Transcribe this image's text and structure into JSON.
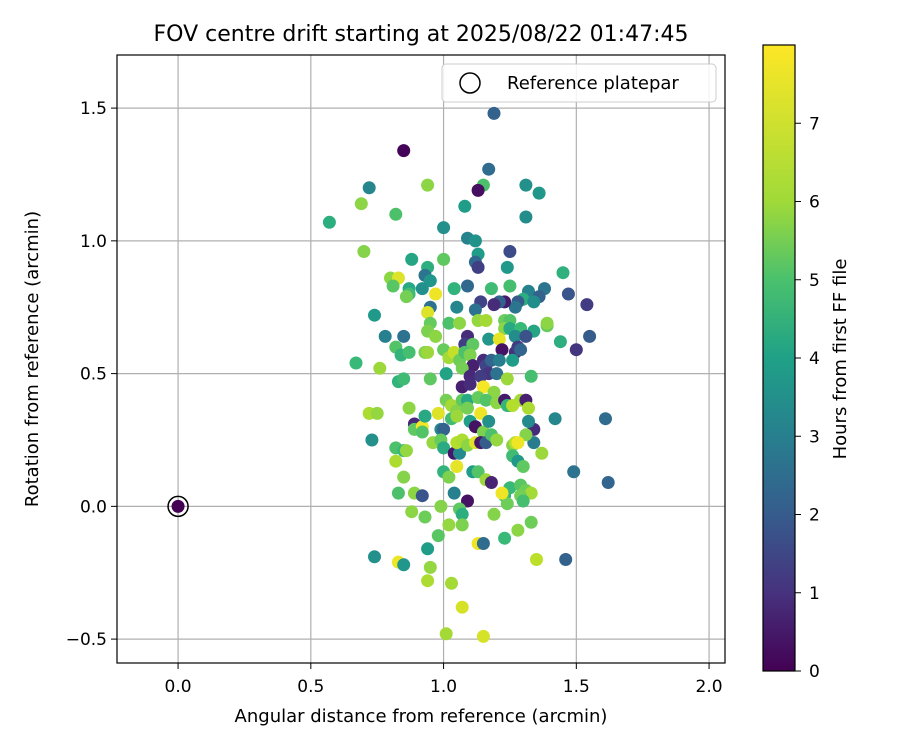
{
  "chart_data": {
    "type": "scatter",
    "title": "FOV centre drift starting at 2025/08/22 01:47:45",
    "xlabel": "Angular distance from reference (arcmin)",
    "ylabel": "Rotation from reference (arcmin)",
    "xlim": [
      -0.23,
      2.06
    ],
    "ylim": [
      -0.59,
      1.7
    ],
    "xticks": [
      0.0,
      0.5,
      1.0,
      1.5,
      2.0
    ],
    "xtick_labels": [
      "0.0",
      "0.5",
      "1.0",
      "1.5",
      "2.0"
    ],
    "yticks": [
      -0.5,
      0.0,
      0.5,
      1.0,
      1.5
    ],
    "ytick_labels": [
      "−0.5",
      "0.0",
      "0.5",
      "1.0",
      "1.5"
    ],
    "grid": true,
    "legend": {
      "position": "top-right",
      "entries": [
        "Reference platepar"
      ]
    },
    "reference_point": {
      "x": 0.0,
      "y": 0.0,
      "c": 0
    },
    "colorbar": {
      "label": "Hours from first FF file",
      "colormap": "viridis",
      "range": [
        0,
        8
      ],
      "ticks": [
        0,
        1,
        2,
        3,
        4,
        5,
        6,
        7
      ],
      "tick_labels": [
        "0",
        "1",
        "2",
        "3",
        "4",
        "5",
        "6",
        "7"
      ]
    },
    "series": [
      {
        "points": [
          [
            0.85,
            1.34,
            0.1
          ],
          [
            1.19,
            1.48,
            2.5
          ],
          [
            1.17,
            1.27,
            2.8
          ],
          [
            1.15,
            1.21,
            5.7
          ],
          [
            1.13,
            1.19,
            0.3
          ],
          [
            1.31,
            1.21,
            4.0
          ],
          [
            1.36,
            1.18,
            4.2
          ],
          [
            0.94,
            1.21,
            6.6
          ],
          [
            0.72,
            1.2,
            3.7
          ],
          [
            0.57,
            1.07,
            5.0
          ],
          [
            0.69,
            1.14,
            6.6
          ],
          [
            0.82,
            1.1,
            5.7
          ],
          [
            1.08,
            1.13,
            4.4
          ],
          [
            1.31,
            1.09,
            3.9
          ],
          [
            1.0,
            1.05,
            4.0
          ],
          [
            1.09,
            1.01,
            3.6
          ],
          [
            1.12,
            1.0,
            4.1
          ],
          [
            0.7,
            0.96,
            6.5
          ],
          [
            1.25,
            0.96,
            1.8
          ],
          [
            1.13,
            0.95,
            4.4
          ],
          [
            1.12,
            0.92,
            2.7
          ],
          [
            1.13,
            0.9,
            1.5
          ],
          [
            0.88,
            0.93,
            4.7
          ],
          [
            0.94,
            0.9,
            5.0
          ],
          [
            1.0,
            0.93,
            6.0
          ],
          [
            1.24,
            0.9,
            4.3
          ],
          [
            1.45,
            0.88,
            5.1
          ],
          [
            0.93,
            0.87,
            3.1
          ],
          [
            0.95,
            0.85,
            4.2
          ],
          [
            0.8,
            0.86,
            6.6
          ],
          [
            0.83,
            0.86,
            7.6
          ],
          [
            0.81,
            0.83,
            5.9
          ],
          [
            0.87,
            0.82,
            4.8
          ],
          [
            0.87,
            0.8,
            5.5
          ],
          [
            0.92,
            0.82,
            4.0
          ],
          [
            0.97,
            0.8,
            7.8
          ],
          [
            1.04,
            0.82,
            5.2
          ],
          [
            1.09,
            0.83,
            2.7
          ],
          [
            1.18,
            0.82,
            5.5
          ],
          [
            1.25,
            0.83,
            5.6
          ],
          [
            1.32,
            0.81,
            3.6
          ],
          [
            1.38,
            0.82,
            3.1
          ],
          [
            1.36,
            0.79,
            2.5
          ],
          [
            1.3,
            0.78,
            5.0
          ],
          [
            1.34,
            0.77,
            3.9
          ],
          [
            1.28,
            0.77,
            2.3
          ],
          [
            1.27,
            0.75,
            3.1
          ],
          [
            1.23,
            0.77,
            0.6
          ],
          [
            1.21,
            0.77,
            2.5
          ],
          [
            1.14,
            0.77,
            1.6
          ],
          [
            1.19,
            0.76,
            1.0
          ],
          [
            1.12,
            0.74,
            3.0
          ],
          [
            1.05,
            0.75,
            3.7
          ],
          [
            0.95,
            0.75,
            3.0
          ],
          [
            0.86,
            0.79,
            6.3
          ],
          [
            1.47,
            0.8,
            2.1
          ],
          [
            1.54,
            0.76,
            1.4
          ],
          [
            0.94,
            0.73,
            7.6
          ],
          [
            0.74,
            0.72,
            4.3
          ],
          [
            0.95,
            0.69,
            6.1
          ],
          [
            1.02,
            0.69,
            5.7
          ],
          [
            1.06,
            0.69,
            6.6
          ],
          [
            1.13,
            0.7,
            6.7
          ],
          [
            1.16,
            0.7,
            6.9
          ],
          [
            1.23,
            0.7,
            6.2
          ],
          [
            1.25,
            0.7,
            5.8
          ],
          [
            1.23,
            0.67,
            6.6
          ],
          [
            1.25,
            0.67,
            4.8
          ],
          [
            1.29,
            0.67,
            5.4
          ],
          [
            1.34,
            0.66,
            4.7
          ],
          [
            1.39,
            0.68,
            6.1
          ],
          [
            1.39,
            0.69,
            6.6
          ],
          [
            1.44,
            0.62,
            5.0
          ],
          [
            1.5,
            0.59,
            1.2
          ],
          [
            1.55,
            0.64,
            2.3
          ],
          [
            0.78,
            0.64,
            3.5
          ],
          [
            0.85,
            0.64,
            3.0
          ],
          [
            0.94,
            0.66,
            6.4
          ],
          [
            0.97,
            0.64,
            6.6
          ],
          [
            1.09,
            0.64,
            1.0
          ],
          [
            1.08,
            0.61,
            1.5
          ],
          [
            1.11,
            0.61,
            6.0
          ],
          [
            1.17,
            0.63,
            4.2
          ],
          [
            1.21,
            0.63,
            7.7
          ],
          [
            1.27,
            0.64,
            3.9
          ],
          [
            1.31,
            0.64,
            2.0
          ],
          [
            1.22,
            0.59,
            0.4
          ],
          [
            1.27,
            0.58,
            1.1
          ],
          [
            1.28,
            0.6,
            1.4
          ],
          [
            1.29,
            0.59,
            2.6
          ],
          [
            0.82,
            0.6,
            5.8
          ],
          [
            0.93,
            0.58,
            6.4
          ],
          [
            0.94,
            0.58,
            6.8
          ],
          [
            1.0,
            0.59,
            6.1
          ],
          [
            1.02,
            0.56,
            6.9
          ],
          [
            1.04,
            0.58,
            7.3
          ],
          [
            1.06,
            0.55,
            6.2
          ],
          [
            1.08,
            0.58,
            5.7
          ],
          [
            1.1,
            0.57,
            6.4
          ],
          [
            1.11,
            0.53,
            0.7
          ],
          [
            1.15,
            0.55,
            1.0
          ],
          [
            1.16,
            0.53,
            1.6
          ],
          [
            1.17,
            0.5,
            1.2
          ],
          [
            1.18,
            0.55,
            2.6
          ],
          [
            1.21,
            0.55,
            3.4
          ],
          [
            1.26,
            0.55,
            4.4
          ],
          [
            0.67,
            0.54,
            5.4
          ],
          [
            0.76,
            0.52,
            6.8
          ],
          [
            0.84,
            0.57,
            5.2
          ],
          [
            0.87,
            0.58,
            5.6
          ],
          [
            1.01,
            0.5,
            4.6
          ],
          [
            1.07,
            0.52,
            6.3
          ],
          [
            1.1,
            0.49,
            0.9
          ],
          [
            1.14,
            0.49,
            1.4
          ],
          [
            1.2,
            0.5,
            3.0
          ],
          [
            1.24,
            0.48,
            6.8
          ],
          [
            1.33,
            0.49,
            5.6
          ],
          [
            0.83,
            0.47,
            5.2
          ],
          [
            0.85,
            0.48,
            5.5
          ],
          [
            0.95,
            0.48,
            6.0
          ],
          [
            1.07,
            0.45,
            0.7
          ],
          [
            1.1,
            0.46,
            1.0
          ],
          [
            1.15,
            0.45,
            7.9
          ],
          [
            1.19,
            0.43,
            6.6
          ],
          [
            1.25,
            0.38,
            4.8
          ],
          [
            1.29,
            0.4,
            6.9
          ],
          [
            1.31,
            0.4,
            0.7
          ],
          [
            1.32,
            0.37,
            7.0
          ],
          [
            1.01,
            0.4,
            6.3
          ],
          [
            1.03,
            0.38,
            6.9
          ],
          [
            1.05,
            0.36,
            6.5
          ],
          [
            1.07,
            0.4,
            6.0
          ],
          [
            1.09,
            0.4,
            4.8
          ],
          [
            1.13,
            0.41,
            6.1
          ],
          [
            1.16,
            0.4,
            5.8
          ],
          [
            1.2,
            0.39,
            6.6
          ],
          [
            1.23,
            0.4,
            0.6
          ],
          [
            1.24,
            0.38,
            5.3
          ],
          [
            1.26,
            0.38,
            7.1
          ],
          [
            1.34,
            0.29,
            1.0
          ],
          [
            1.34,
            0.24,
            3.3
          ],
          [
            1.32,
            0.32,
            3.8
          ],
          [
            1.31,
            0.27,
            6.5
          ],
          [
            1.42,
            0.33,
            3.7
          ],
          [
            0.72,
            0.35,
            7.0
          ],
          [
            0.75,
            0.35,
            6.7
          ],
          [
            0.87,
            0.37,
            6.6
          ],
          [
            0.89,
            0.31,
            0.9
          ],
          [
            0.89,
            0.29,
            6.0
          ],
          [
            0.92,
            0.3,
            7.9
          ],
          [
            0.93,
            0.34,
            4.8
          ],
          [
            0.98,
            0.35,
            7.6
          ],
          [
            0.99,
            0.29,
            3.8
          ],
          [
            1.0,
            0.29,
            2.5
          ],
          [
            1.03,
            0.33,
            5.5
          ],
          [
            1.05,
            0.34,
            6.8
          ],
          [
            1.09,
            0.37,
            6.3
          ],
          [
            1.1,
            0.32,
            4.5
          ],
          [
            1.12,
            0.3,
            0.4
          ],
          [
            1.14,
            0.35,
            7.8
          ],
          [
            1.15,
            0.28,
            6.4
          ],
          [
            1.17,
            0.32,
            4.0
          ],
          [
            1.61,
            0.33,
            2.8
          ],
          [
            0.73,
            0.25,
            4.0
          ],
          [
            0.82,
            0.22,
            5.7
          ],
          [
            0.85,
            0.21,
            5.4
          ],
          [
            0.86,
            0.21,
            6.7
          ],
          [
            0.92,
            0.28,
            5.8
          ],
          [
            0.96,
            0.24,
            6.7
          ],
          [
            0.99,
            0.25,
            6.1
          ],
          [
            1.0,
            0.22,
            4.9
          ],
          [
            1.04,
            0.2,
            0.5
          ],
          [
            1.06,
            0.2,
            3.8
          ],
          [
            1.05,
            0.24,
            7.1
          ],
          [
            1.07,
            0.25,
            7.0
          ],
          [
            1.09,
            0.23,
            6.6
          ],
          [
            1.12,
            0.24,
            7.6
          ],
          [
            1.14,
            0.24,
            0.5
          ],
          [
            1.16,
            0.24,
            2.3
          ],
          [
            1.18,
            0.27,
            5.7
          ],
          [
            1.2,
            0.25,
            6.7
          ],
          [
            1.26,
            0.23,
            6.5
          ],
          [
            1.27,
            0.24,
            7.1
          ],
          [
            1.28,
            0.24,
            7.8
          ],
          [
            1.26,
            0.19,
            5.5
          ],
          [
            1.28,
            0.17,
            4.3
          ],
          [
            1.3,
            0.15,
            6.0
          ],
          [
            1.37,
            0.2,
            6.8
          ],
          [
            1.49,
            0.13,
            3.0
          ],
          [
            0.82,
            0.17,
            7.0
          ],
          [
            0.85,
            0.11,
            6.5
          ],
          [
            1.0,
            0.13,
            5.2
          ],
          [
            1.02,
            0.11,
            6.4
          ],
          [
            1.05,
            0.15,
            7.7
          ],
          [
            1.11,
            0.13,
            4.4
          ],
          [
            1.13,
            0.13,
            5.8
          ],
          [
            1.16,
            0.1,
            6.8
          ],
          [
            1.18,
            0.09,
            0.8
          ],
          [
            1.25,
            0.07,
            5.4
          ],
          [
            1.29,
            0.08,
            5.9
          ],
          [
            1.31,
            0.06,
            6.2
          ],
          [
            1.33,
            0.05,
            6.9
          ],
          [
            1.29,
            0.04,
            6.3
          ],
          [
            1.3,
            0.02,
            5.6
          ],
          [
            1.23,
            0.04,
            5.3
          ],
          [
            1.24,
            0.01,
            6.2
          ],
          [
            1.22,
            0.05,
            7.8
          ],
          [
            1.62,
            0.09,
            2.6
          ],
          [
            0.83,
            0.05,
            5.7
          ],
          [
            0.89,
            0.05,
            6.6
          ],
          [
            0.92,
            0.04,
            2.1
          ],
          [
            1.04,
            0.05,
            3.5
          ],
          [
            1.09,
            0.02,
            0.4
          ],
          [
            1.06,
            -0.01,
            6.0
          ],
          [
            1.07,
            -0.03,
            5.0
          ],
          [
            1.19,
            -0.03,
            6.5
          ],
          [
            0.88,
            -0.02,
            6.6
          ],
          [
            0.93,
            -0.04,
            6.2
          ],
          [
            0.99,
            0.0,
            6.5
          ],
          [
            1.02,
            -0.07,
            6.7
          ],
          [
            1.07,
            -0.07,
            6.4
          ],
          [
            1.33,
            -0.06,
            6.2
          ],
          [
            1.28,
            -0.09,
            6.6
          ],
          [
            1.23,
            -0.12,
            5.4
          ],
          [
            0.94,
            -0.16,
            4.4
          ],
          [
            0.98,
            -0.11,
            5.9
          ],
          [
            1.13,
            -0.14,
            7.8
          ],
          [
            1.15,
            -0.14,
            2.8
          ],
          [
            1.35,
            -0.2,
            7.2
          ],
          [
            1.46,
            -0.2,
            2.5
          ],
          [
            0.74,
            -0.19,
            4.0
          ],
          [
            0.83,
            -0.21,
            7.8
          ],
          [
            0.85,
            -0.22,
            4.2
          ],
          [
            0.95,
            -0.23,
            6.7
          ],
          [
            0.94,
            -0.28,
            7.0
          ],
          [
            1.03,
            -0.29,
            6.9
          ],
          [
            1.07,
            -0.38,
            7.5
          ],
          [
            1.15,
            -0.49,
            7.5
          ],
          [
            1.01,
            -0.48,
            6.9
          ]
        ]
      }
    ]
  }
}
